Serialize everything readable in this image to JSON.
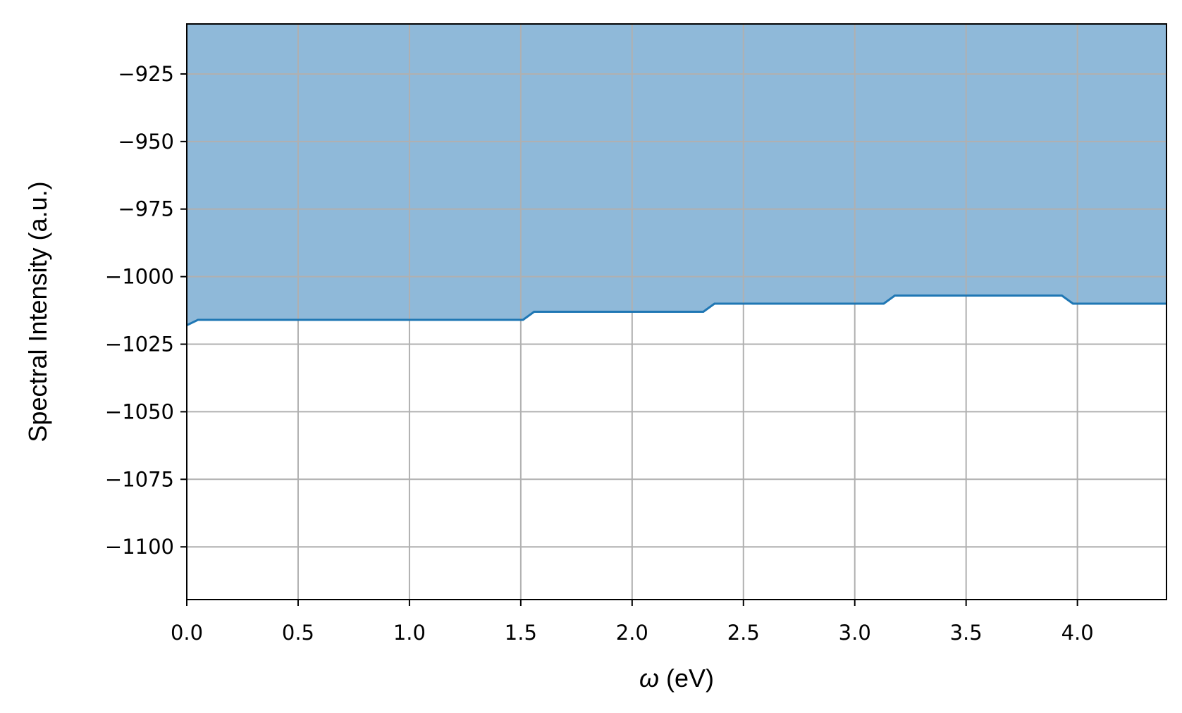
{
  "chart_data": {
    "type": "area",
    "title": "",
    "xlabel_symbol": "ω",
    "xlabel_unit": " (eV)",
    "ylabel": "Spectral Intensity (a.u.)",
    "xlim": [
      0.0,
      4.4
    ],
    "ylim": [
      -1119.5,
      -906.5
    ],
    "xticks": [
      0.0,
      0.5,
      1.0,
      1.5,
      2.0,
      2.5,
      3.0,
      3.5,
      4.0
    ],
    "xtick_labels": [
      "0.0",
      "0.5",
      "1.0",
      "1.5",
      "2.0",
      "2.5",
      "3.0",
      "3.5",
      "4.0"
    ],
    "yticks": [
      -925,
      -950,
      -975,
      -1000,
      -1025,
      -1050,
      -1075,
      -1100
    ],
    "ytick_labels": [
      "−925",
      "−950",
      "−975",
      "−1000",
      "−1025",
      "−1050",
      "−1075",
      "−1100"
    ],
    "grid": true,
    "fill": "above-line",
    "colors": {
      "line": "#1f77b4",
      "fill": "#8fb9d9",
      "grid": "#b0b0b0"
    },
    "series": [
      {
        "x": [
          0.0,
          0.05,
          1.51,
          1.56,
          2.32,
          2.37,
          3.13,
          3.18,
          3.93,
          3.98,
          4.4
        ],
        "values": [
          -1018,
          -1016,
          -1016,
          -1013,
          -1013,
          -1010,
          -1010,
          -1007,
          -1007,
          -1010,
          -1010
        ]
      }
    ]
  }
}
